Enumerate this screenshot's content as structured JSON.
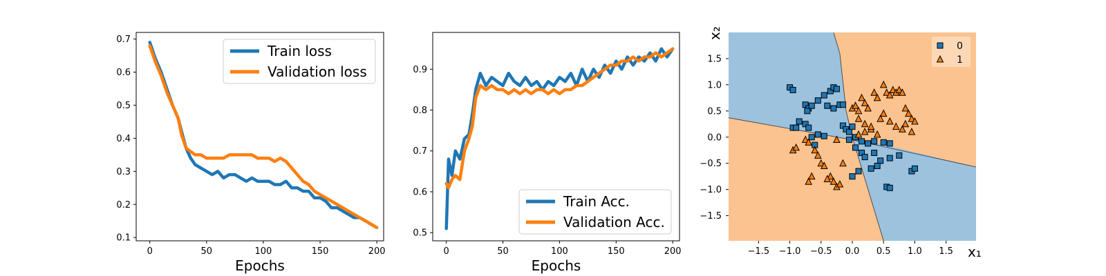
{
  "chart_data": [
    {
      "type": "line",
      "title": "",
      "xlabel": "Epochs",
      "ylabel": "",
      "xlim": [
        -12,
        206
      ],
      "ylim": [
        0.09,
        0.72
      ],
      "xticks": [
        0,
        50,
        100,
        150,
        200
      ],
      "yticks": [
        0.1,
        0.2,
        0.3,
        0.4,
        0.5,
        0.6,
        0.7
      ],
      "tick_labels_x": [
        "0",
        "50",
        "100",
        "150",
        "200"
      ],
      "tick_labels_y": [
        "0.1",
        "0.2",
        "0.3",
        "0.4",
        "0.5",
        "0.6",
        "0.7"
      ],
      "legend": "top-right",
      "series": [
        {
          "name": "Train loss",
          "color": "#1f77b4",
          "x": [
            0,
            5,
            10,
            15,
            20,
            25,
            28,
            32,
            36,
            40,
            45,
            50,
            55,
            60,
            65,
            70,
            75,
            80,
            85,
            90,
            95,
            100,
            105,
            110,
            115,
            120,
            125,
            130,
            135,
            140,
            145,
            150,
            155,
            160,
            165,
            170,
            175,
            180,
            185,
            190,
            195,
            200
          ],
          "y": [
            0.69,
            0.64,
            0.6,
            0.55,
            0.5,
            0.46,
            0.42,
            0.37,
            0.34,
            0.32,
            0.31,
            0.3,
            0.29,
            0.3,
            0.28,
            0.29,
            0.29,
            0.28,
            0.27,
            0.28,
            0.27,
            0.27,
            0.27,
            0.26,
            0.26,
            0.27,
            0.25,
            0.25,
            0.24,
            0.24,
            0.22,
            0.22,
            0.21,
            0.19,
            0.19,
            0.18,
            0.17,
            0.16,
            0.16,
            0.15,
            0.14,
            0.13
          ]
        },
        {
          "name": "Validation loss",
          "color": "#ff7f0e",
          "x": [
            0,
            5,
            10,
            15,
            20,
            25,
            28,
            32,
            36,
            40,
            45,
            50,
            55,
            60,
            65,
            70,
            75,
            80,
            85,
            90,
            95,
            100,
            105,
            110,
            115,
            120,
            125,
            130,
            135,
            140,
            145,
            150,
            155,
            160,
            165,
            170,
            175,
            180,
            185,
            190,
            195,
            200
          ],
          "y": [
            0.68,
            0.63,
            0.59,
            0.54,
            0.5,
            0.46,
            0.41,
            0.37,
            0.36,
            0.35,
            0.35,
            0.34,
            0.34,
            0.34,
            0.34,
            0.35,
            0.35,
            0.35,
            0.35,
            0.35,
            0.34,
            0.34,
            0.34,
            0.33,
            0.34,
            0.33,
            0.31,
            0.29,
            0.27,
            0.26,
            0.24,
            0.23,
            0.22,
            0.21,
            0.2,
            0.19,
            0.18,
            0.17,
            0.16,
            0.15,
            0.14,
            0.13
          ]
        }
      ]
    },
    {
      "type": "line",
      "title": "",
      "xlabel": "Epochs",
      "ylabel": "",
      "xlim": [
        -12,
        206
      ],
      "ylim": [
        0.48,
        0.99
      ],
      "xticks": [
        0,
        50,
        100,
        150,
        200
      ],
      "yticks": [
        0.5,
        0.6,
        0.7,
        0.8,
        0.9
      ],
      "tick_labels_x": [
        "0",
        "50",
        "100",
        "150",
        "200"
      ],
      "tick_labels_y": [
        "0.5",
        "0.6",
        "0.7",
        "0.8",
        "0.9"
      ],
      "legend": "bottom-right",
      "series": [
        {
          "name": "Train Acc.",
          "color": "#1f77b4",
          "x": [
            0,
            2,
            5,
            8,
            12,
            16,
            20,
            23,
            26,
            30,
            35,
            40,
            45,
            50,
            55,
            60,
            65,
            70,
            75,
            80,
            85,
            90,
            95,
            100,
            105,
            110,
            115,
            120,
            125,
            130,
            135,
            140,
            145,
            150,
            155,
            160,
            165,
            170,
            175,
            180,
            185,
            190,
            195,
            200
          ],
          "y": [
            0.51,
            0.68,
            0.64,
            0.7,
            0.68,
            0.73,
            0.74,
            0.79,
            0.85,
            0.89,
            0.86,
            0.88,
            0.87,
            0.86,
            0.89,
            0.87,
            0.86,
            0.88,
            0.86,
            0.87,
            0.85,
            0.87,
            0.86,
            0.88,
            0.87,
            0.89,
            0.86,
            0.9,
            0.87,
            0.9,
            0.88,
            0.91,
            0.89,
            0.92,
            0.9,
            0.93,
            0.91,
            0.93,
            0.92,
            0.94,
            0.92,
            0.95,
            0.93,
            0.95
          ]
        },
        {
          "name": "Validation Acc.",
          "color": "#ff7f0e",
          "x": [
            0,
            2,
            5,
            8,
            12,
            16,
            20,
            23,
            26,
            30,
            35,
            40,
            45,
            50,
            55,
            60,
            65,
            70,
            75,
            80,
            85,
            90,
            95,
            100,
            105,
            110,
            115,
            120,
            125,
            130,
            135,
            140,
            145,
            150,
            155,
            160,
            165,
            170,
            175,
            180,
            185,
            190,
            195,
            200
          ],
          "y": [
            0.62,
            0.61,
            0.63,
            0.64,
            0.63,
            0.7,
            0.73,
            0.76,
            0.83,
            0.86,
            0.85,
            0.86,
            0.85,
            0.85,
            0.84,
            0.85,
            0.84,
            0.85,
            0.84,
            0.85,
            0.85,
            0.84,
            0.85,
            0.84,
            0.85,
            0.85,
            0.86,
            0.86,
            0.87,
            0.88,
            0.89,
            0.9,
            0.91,
            0.91,
            0.92,
            0.92,
            0.93,
            0.92,
            0.93,
            0.93,
            0.94,
            0.93,
            0.94,
            0.95
          ]
        }
      ]
    },
    {
      "type": "scatter",
      "title": "",
      "xlabel": "x₁",
      "ylabel": "x₂",
      "xlim": [
        -1.98,
        1.98
      ],
      "ylim": [
        -1.98,
        2.0
      ],
      "xticks": [
        -1.5,
        -1.0,
        -0.5,
        0.0,
        0.5,
        1.0,
        1.5
      ],
      "yticks": [
        -1.5,
        -1.0,
        -0.5,
        0.0,
        0.5,
        1.0,
        1.5
      ],
      "tick_labels_x": [
        "−1.5",
        "−1.0",
        "−0.5",
        "0.0",
        "0.5",
        "1.0",
        "1.5"
      ],
      "tick_labels_y": [
        "−1.5",
        "−1.0",
        "−0.5",
        "0.0",
        "0.5",
        "1.0",
        "1.5"
      ],
      "legend": "top-right",
      "decision_regions": {
        "class0_color": "#9cc2de",
        "class1_color": "#fbc38f",
        "boundary_a": [
          [
            -0.3,
            2.0
          ],
          [
            -0.2,
            1.6
          ],
          [
            -0.1,
            0.5
          ],
          [
            0.0,
            0.0
          ],
          [
            0.5,
            -1.98
          ]
        ],
        "boundary_b": [
          [
            -1.98,
            0.37
          ],
          [
            0.0,
            -0.05
          ],
          [
            1.98,
            -0.57
          ]
        ]
      },
      "series": [
        {
          "name": "0",
          "marker": "square",
          "color": "#1f77b4",
          "x": [
            -1.0,
            -0.95,
            -0.75,
            -0.7,
            -0.72,
            -0.65,
            -0.55,
            -0.45,
            -0.35,
            -0.3,
            -0.25,
            -0.2,
            -0.4,
            -0.3,
            -0.15,
            -0.85,
            -0.75,
            -0.7,
            -0.55,
            -0.45,
            -0.95,
            -0.65,
            -0.15,
            -0.1,
            -0.05,
            0.0,
            0.05,
            0.15,
            0.25,
            0.35,
            0.5,
            0.6,
            -0.05,
            0.05,
            0.15,
            0.2,
            0.35,
            0.45,
            0.6,
            0.75,
            0.0,
            0.1,
            0.3,
            0.4,
            0.55,
            0.6,
            0.95,
            1.0,
            -0.9,
            -0.6
          ],
          "y": [
            0.95,
            0.9,
            0.62,
            0.55,
            0.5,
            0.6,
            0.7,
            0.8,
            0.88,
            0.95,
            0.92,
            0.62,
            0.6,
            0.55,
            0.62,
            0.3,
            0.25,
            0.18,
            0.05,
            0.02,
            0.18,
            0.0,
            0.22,
            0.15,
            0.1,
            0.2,
            0.0,
            -0.08,
            -0.12,
            -0.08,
            -0.1,
            -0.12,
            -0.05,
            -0.2,
            -0.3,
            -0.38,
            -0.3,
            -0.45,
            -0.4,
            -0.35,
            -0.75,
            -0.65,
            -0.6,
            -0.55,
            -0.95,
            -0.97,
            -0.65,
            -0.6,
            0.18,
            -0.15
          ]
        },
        {
          "name": "1",
          "marker": "triangle",
          "color": "#ff7f0e",
          "x": [
            0.0,
            0.05,
            0.1,
            0.15,
            0.2,
            0.25,
            0.35,
            0.4,
            0.5,
            0.55,
            0.6,
            0.65,
            0.7,
            0.75,
            0.8,
            0.85,
            0.9,
            0.95,
            1.0,
            0.1,
            0.2,
            0.3,
            0.4,
            0.45,
            0.6,
            0.7,
            0.8,
            0.85,
            0.95,
            0.5,
            0.3,
            0.2,
            0.1,
            -0.95,
            -0.9,
            -0.75,
            -0.7,
            -0.6,
            -0.55,
            -0.5,
            -0.45,
            -0.35,
            -0.3,
            -0.25,
            -0.2,
            -0.4,
            -0.15,
            -0.65,
            -0.7,
            -0.25
          ],
          "y": [
            0.55,
            0.6,
            0.5,
            0.75,
            0.65,
            0.55,
            0.85,
            0.75,
            1.0,
            0.85,
            0.8,
            0.9,
            0.85,
            0.9,
            0.85,
            0.55,
            0.45,
            0.35,
            0.3,
            0.35,
            0.25,
            0.15,
            0.05,
            0.35,
            0.3,
            0.2,
            0.15,
            0.25,
            0.1,
            0.45,
            0.2,
            0.1,
            0.05,
            -0.25,
            -0.2,
            -0.05,
            -0.1,
            -0.25,
            -0.35,
            -0.5,
            -0.55,
            -0.75,
            -0.85,
            -0.95,
            -0.9,
            -0.8,
            -0.5,
            -0.75,
            -0.85,
            -0.05
          ]
        }
      ]
    }
  ]
}
